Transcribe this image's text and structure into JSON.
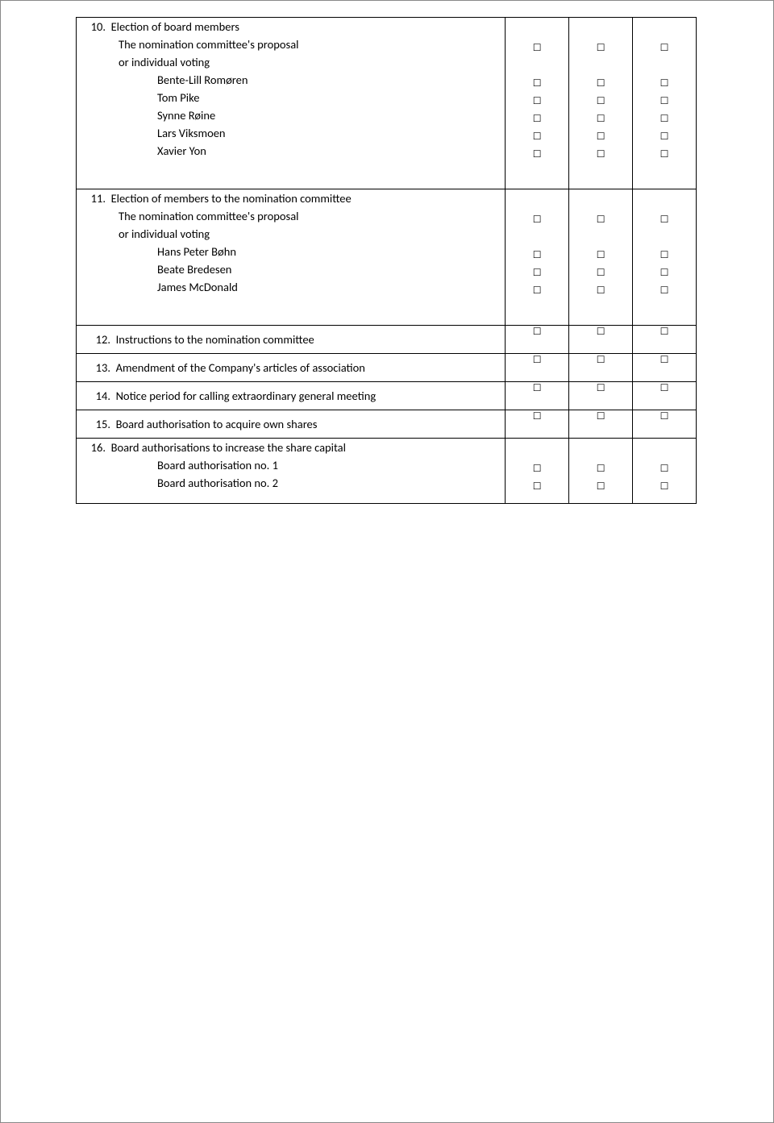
{
  "checkbox_glyph": "☐",
  "items": [
    {
      "number": "10.",
      "title": "Election of board members",
      "lines": [
        {
          "indent": 1,
          "text": "The nomination committee's proposal",
          "checks": true
        },
        {
          "indent": 1,
          "text": "or individual voting",
          "checks": false
        },
        {
          "indent": 2,
          "text": "Bente-Lill Romøren",
          "checks": true
        },
        {
          "indent": 2,
          "text": "Tom Pike",
          "checks": true
        },
        {
          "indent": 2,
          "text": "Synne Røine",
          "checks": true
        },
        {
          "indent": 2,
          "text": "Lars Viksmoen",
          "checks": true
        },
        {
          "indent": 2,
          "text": "Xavier Yon",
          "checks": true
        }
      ],
      "trailing_blank": true
    },
    {
      "number": "11.",
      "title": "Election of members to the nomination committee",
      "lines": [
        {
          "indent": 1,
          "text": "The nomination committee's proposal",
          "checks": true
        },
        {
          "indent": 1,
          "text": "or individual voting",
          "checks": false
        },
        {
          "indent": 2,
          "text": "Hans Peter Bøhn",
          "checks": true
        },
        {
          "indent": 2,
          "text": "Beate Bredesen",
          "checks": true
        },
        {
          "indent": 2,
          "text": "James McDonald",
          "checks": true
        }
      ],
      "trailing_blank": true
    },
    {
      "number": "12.",
      "title": "Instructions to the nomination committee",
      "single": true
    },
    {
      "number": "13.",
      "title": "Amendment of the Company's articles of association",
      "single": true
    },
    {
      "number": "14.",
      "title": "Notice period for calling extraordinary general meeting",
      "single": true
    },
    {
      "number": "15.",
      "title": "Board authorisation to acquire own shares",
      "single": true
    },
    {
      "number": "16.",
      "title": "Board authorisations to increase the share capital",
      "lines": [
        {
          "indent": 2,
          "text": "Board authorisation no. 1",
          "checks": true
        },
        {
          "indent": 2,
          "text": "Board authorisation no. 2",
          "checks": true
        }
      ],
      "trailing_blank": false
    }
  ]
}
